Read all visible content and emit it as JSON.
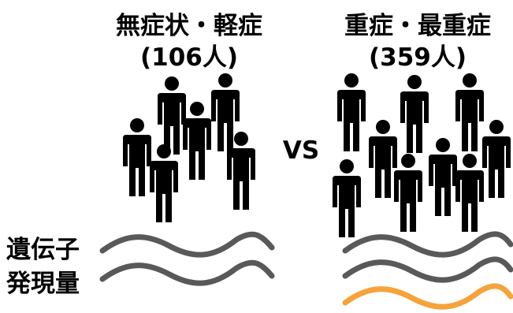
{
  "left_group": {
    "title": "無症状・軽症",
    "count": "(106人)",
    "person_icon": "person-icon",
    "wave_color": "#595959"
  },
  "right_group": {
    "title": "重症・最重症",
    "count": "(359人)",
    "person_icon": "person-icon",
    "wave_color": "#595959",
    "highlight_wave_color": "#F5A33A"
  },
  "vs_label": "VS",
  "y_label": {
    "line1": "遺伝子",
    "line2": "発現量"
  }
}
